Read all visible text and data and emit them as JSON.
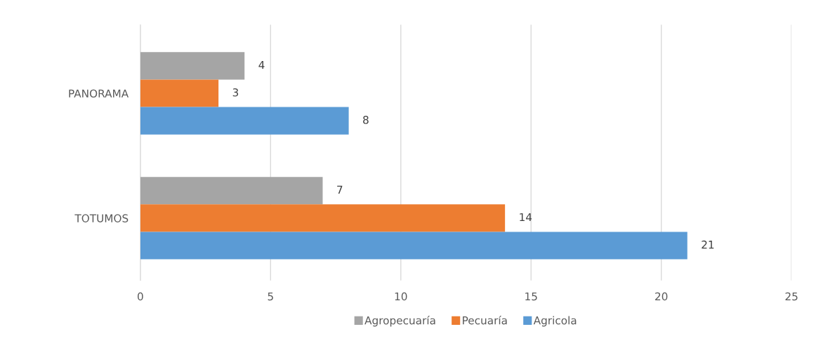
{
  "chart_data": {
    "type": "bar",
    "orientation": "horizontal",
    "categories": [
      "PANORAMA",
      "TOTUMOS"
    ],
    "series": [
      {
        "name": "Agropecuaría",
        "color": "#a5a5a5",
        "values": [
          4,
          7
        ]
      },
      {
        "name": "Pecuaría",
        "color": "#ed7d31",
        "values": [
          3,
          14
        ]
      },
      {
        "name": "Agricola",
        "color": "#5b9bd5",
        "values": [
          8,
          21
        ]
      }
    ],
    "xlim": [
      0,
      25
    ],
    "xticks": [
      0,
      5,
      10,
      15,
      20,
      25
    ],
    "grid": "x",
    "legend": "bottom",
    "data_labels": true
  }
}
